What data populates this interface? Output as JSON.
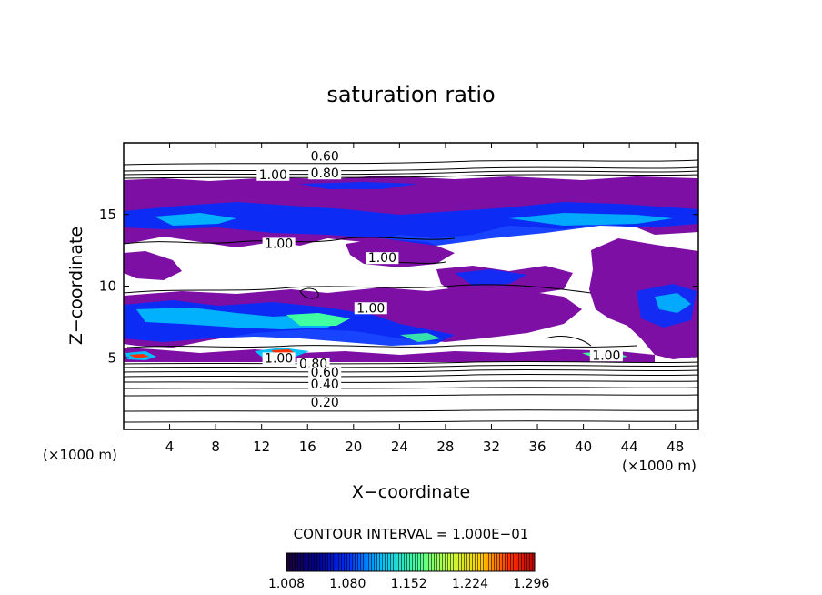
{
  "chart_data": {
    "type": "heatmap",
    "title": "saturation ratio",
    "xlabel": "X−coordinate",
    "ylabel": "Z−coordinate",
    "x_unit_left": "(×1000 m)",
    "x_unit_right": "(×1000 m)",
    "xlim": [
      0,
      50
    ],
    "ylim": [
      0,
      20
    ],
    "x_ticks": [
      4,
      8,
      12,
      16,
      20,
      24,
      28,
      32,
      36,
      40,
      44,
      48
    ],
    "y_ticks": [
      5,
      10,
      15
    ],
    "contour_labels": [
      {
        "text": "0.60",
        "x": 17.5,
        "y": 18.9
      },
      {
        "text": "1.00",
        "x": 13.0,
        "y": 17.6
      },
      {
        "text": "0.80",
        "x": 17.5,
        "y": 17.7
      },
      {
        "text": "1.00",
        "x": 13.5,
        "y": 12.8
      },
      {
        "text": "1.00",
        "x": 22.5,
        "y": 11.8
      },
      {
        "text": "1.00",
        "x": 21.5,
        "y": 8.3
      },
      {
        "text": "1.00",
        "x": 13.5,
        "y": 4.8
      },
      {
        "text": "0.80",
        "x": 16.5,
        "y": 4.4
      },
      {
        "text": "0.60",
        "x": 17.5,
        "y": 3.8
      },
      {
        "text": "0.40",
        "x": 17.5,
        "y": 3.0
      },
      {
        "text": "0.20",
        "x": 17.5,
        "y": 1.7
      },
      {
        "text": "1.00",
        "x": 42.0,
        "y": 5.0
      }
    ],
    "contour_interval_label": "CONTOUR INTERVAL = 1.000E−01",
    "colorbar_ticks": [
      "1.008",
      "1.080",
      "1.152",
      "1.224",
      "1.296"
    ],
    "colorbar_range": [
      1.008,
      1.3
    ],
    "colors": {
      "supersat_low": "#7d0fa5",
      "scale": [
        "#1a0033",
        "#000090",
        "#0030ff",
        "#00c0ff",
        "#40ffa0",
        "#c0ff40",
        "#ffd000",
        "#ff3000",
        "#c00000"
      ]
    }
  }
}
